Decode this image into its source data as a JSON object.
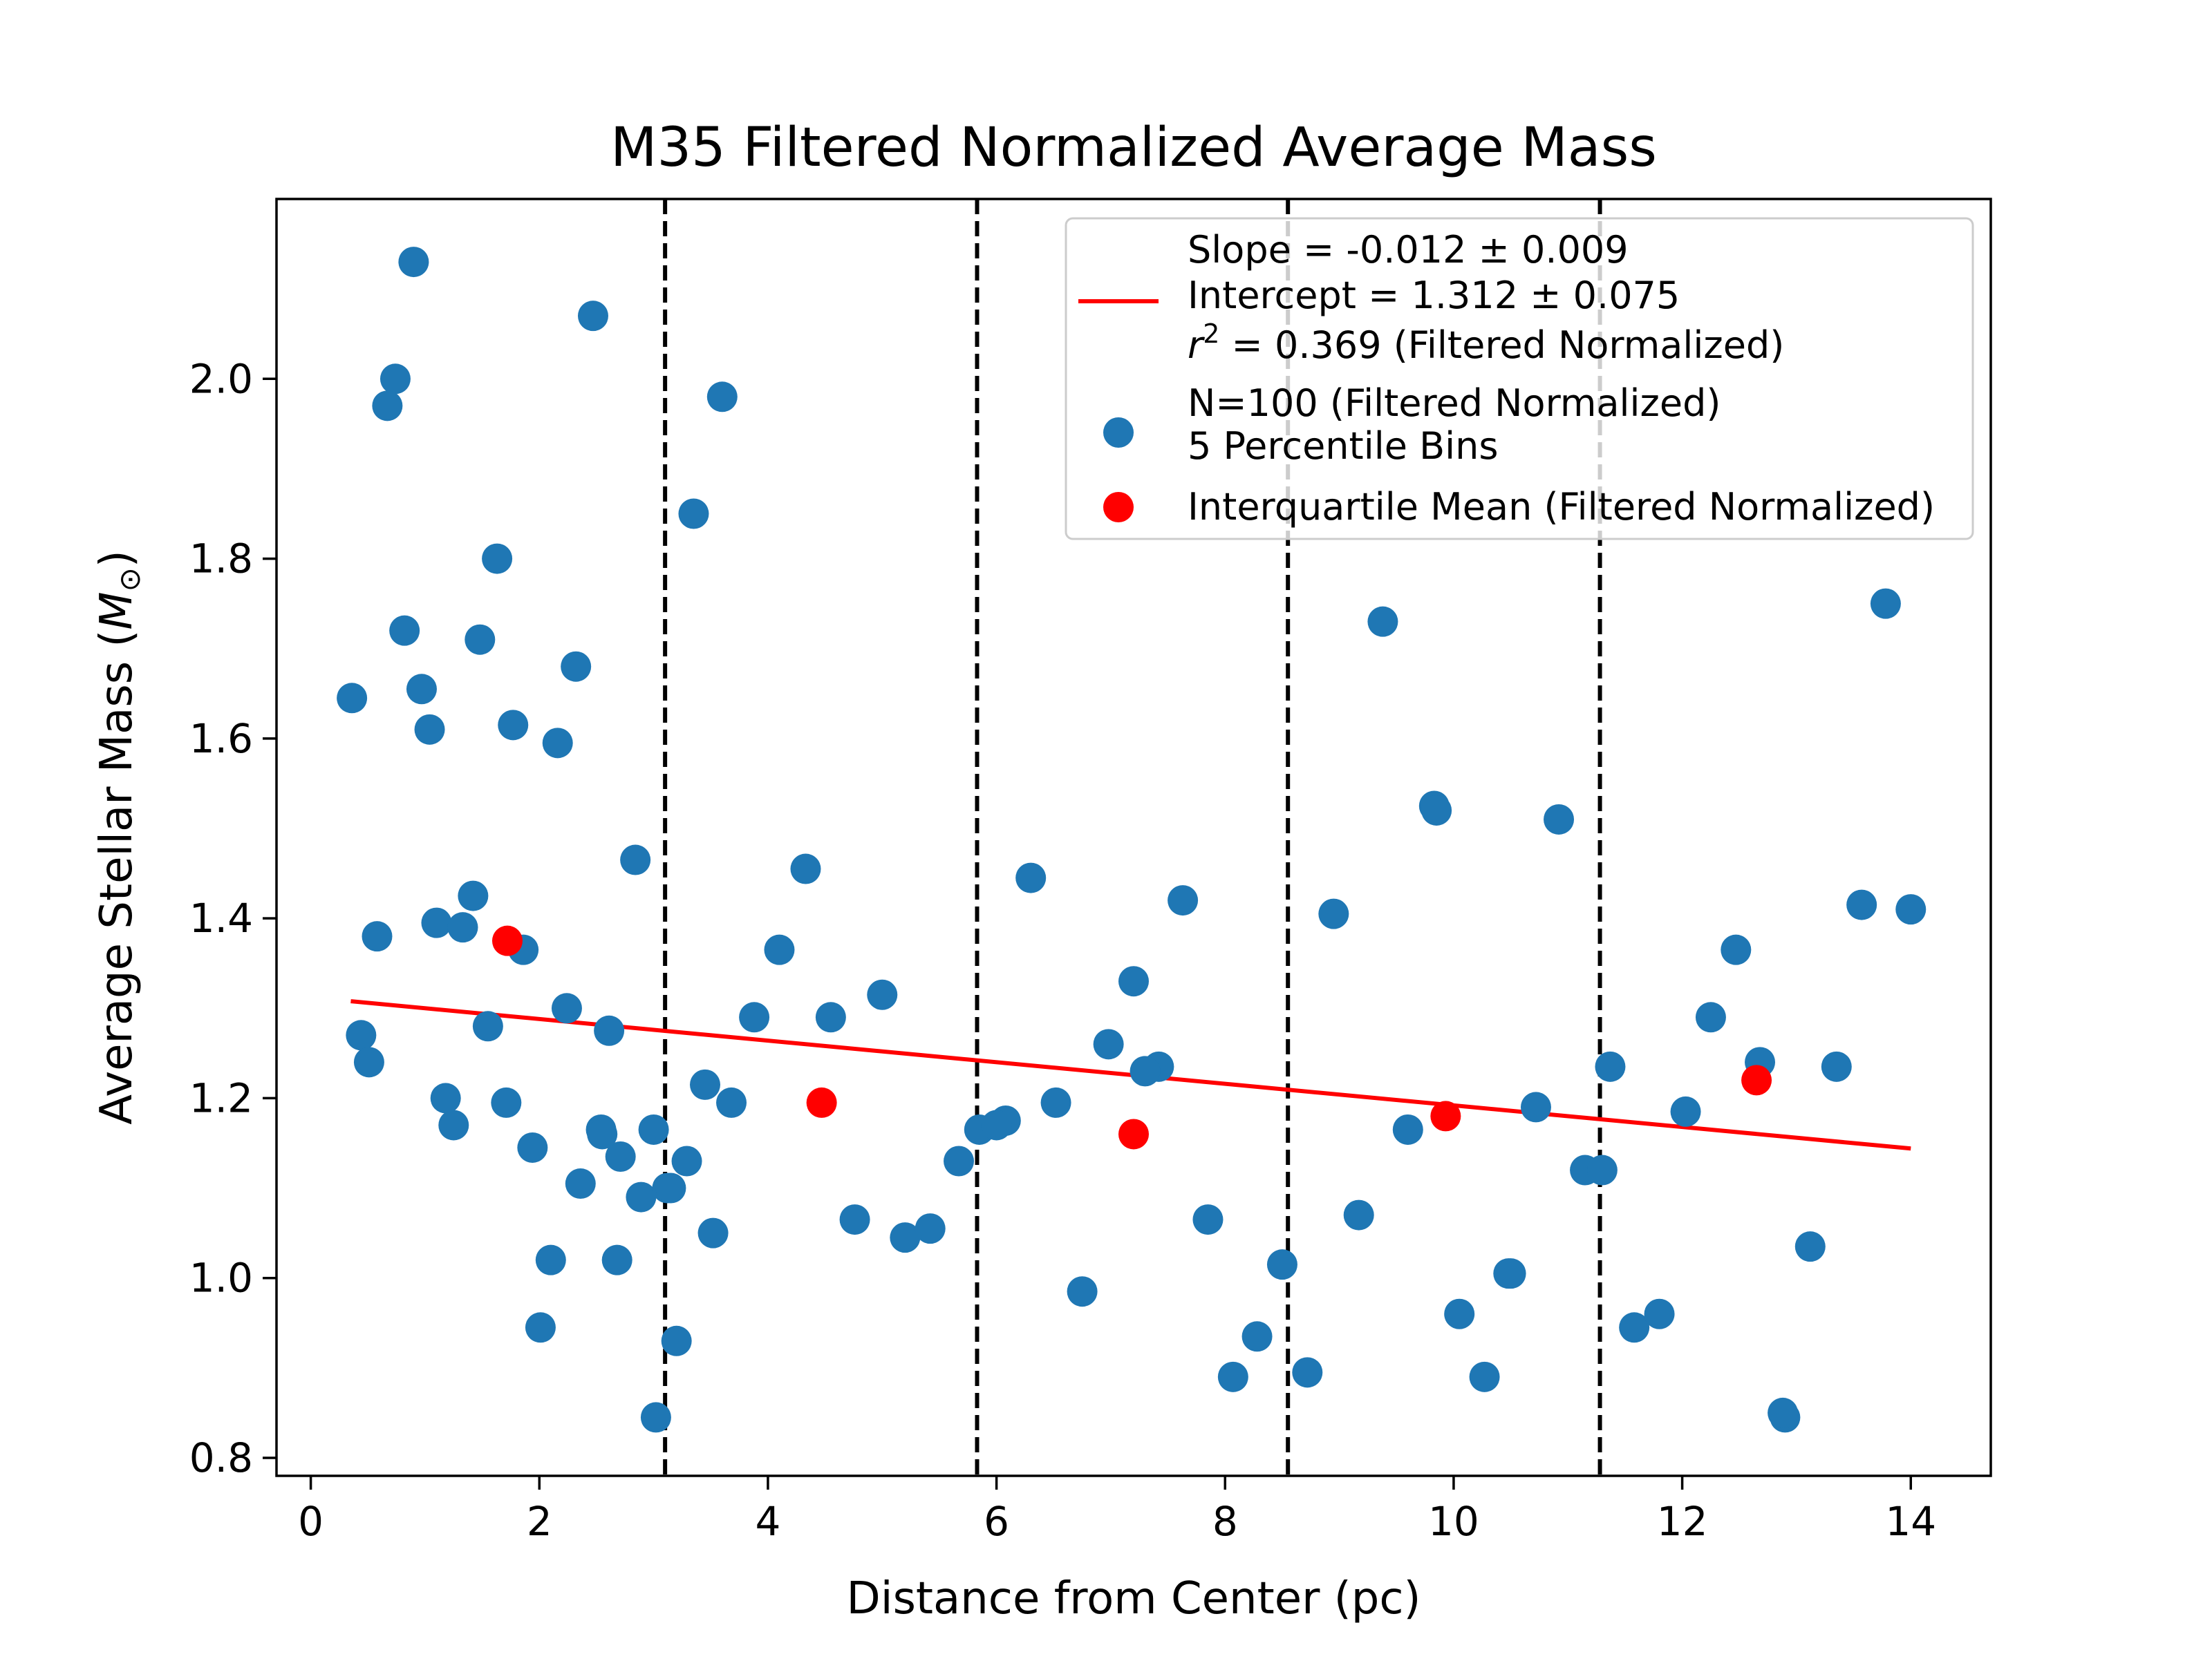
{
  "chart_data": {
    "type": "scatter",
    "title": "M35 Filtered Normalized Average Mass",
    "xlabel": "Distance from Center (pc)",
    "ylabel_main": "Average Stellar Mass (",
    "ylabel_symbol": "M",
    "ylabel_sub": "⊙",
    "ylabel_close": ")",
    "xlim": [
      -0.3,
      14.7
    ],
    "ylim": [
      0.78,
      2.2
    ],
    "xticks": [
      0,
      2,
      4,
      6,
      8,
      10,
      12,
      14
    ],
    "xtick_labels": [
      "0",
      "2",
      "4",
      "6",
      "8",
      "10",
      "12",
      "14"
    ],
    "yticks": [
      0.8,
      1.0,
      1.2,
      1.4,
      1.6,
      1.8,
      2.0
    ],
    "ytick_labels": [
      "0.8",
      "1.0",
      "1.2",
      "1.4",
      "1.6",
      "1.8",
      "2.0"
    ],
    "bin_edges": [
      3.1,
      5.83,
      8.55,
      11.28
    ],
    "colors": {
      "points": "#1f77b4",
      "iqm": "#ff0000",
      "fit": "#ff0000",
      "bins": "#000000"
    },
    "fit": {
      "x_start": 0.35,
      "x_end": 14.0,
      "slope": -0.012,
      "intercept": 1.312
    },
    "legend": {
      "position": "upper right",
      "fit_line1": "Slope = -0.012 ± 0.009",
      "fit_line2": "Intercept = 1.312 ± 0.075",
      "fit_line3_sym": "r",
      "fit_line3_sup": "2",
      "fit_line3_rest": " = 0.369 (Filtered Normalized)",
      "points_line1": "N=100 (Filtered Normalized)",
      "points_line2": "5 Percentile Bins",
      "iqm_line": "Interquartile Mean (Filtered Normalized)"
    },
    "series": [
      {
        "name": "N=100 (Filtered Normalized)",
        "x": [
          0.9,
          2.47,
          0.74,
          3.6,
          0.67,
          3.35,
          1.63,
          0.82,
          1.48,
          2.32,
          0.36,
          0.97,
          1.77,
          1.04,
          2.16,
          2.84,
          1.42,
          1.1,
          1.33,
          0.58,
          1.86,
          1.55,
          2.24,
          2.61,
          0.44,
          0.51,
          1.71,
          1.18,
          1.25,
          1.94,
          2.36,
          2.54,
          2.71,
          2.89,
          3.0,
          3.12,
          3.29,
          2.1,
          2.01,
          2.68,
          3.2,
          3.02,
          4.33,
          4.1,
          3.88,
          4.55,
          5.0,
          3.45,
          3.68,
          3.52,
          4.76,
          5.2,
          5.42,
          5.67,
          5.85,
          6.08,
          6.3,
          6.52,
          6.75,
          6.98,
          7.2,
          7.42,
          7.63,
          7.85,
          8.07,
          8.28,
          8.5,
          8.72,
          8.95,
          9.17,
          9.38,
          9.6,
          9.83,
          10.05,
          10.27,
          10.48,
          10.72,
          10.92,
          11.15,
          11.37,
          11.58,
          11.8,
          12.03,
          12.25,
          12.47,
          12.68,
          12.9,
          13.12,
          13.35,
          13.57,
          13.78,
          14.0,
          12.88,
          10.5,
          11.3,
          9.85,
          7.3,
          6.0,
          3.15,
          2.55
        ],
        "y": [
          2.13,
          2.07,
          2.0,
          1.98,
          1.97,
          1.85,
          1.8,
          1.72,
          1.71,
          1.68,
          1.645,
          1.655,
          1.615,
          1.61,
          1.595,
          1.465,
          1.425,
          1.395,
          1.39,
          1.38,
          1.365,
          1.28,
          1.3,
          1.275,
          1.27,
          1.24,
          1.195,
          1.2,
          1.17,
          1.145,
          1.105,
          1.165,
          1.135,
          1.09,
          1.165,
          1.1,
          1.13,
          1.02,
          0.945,
          1.02,
          0.93,
          0.845,
          1.455,
          1.365,
          1.29,
          1.29,
          1.315,
          1.215,
          1.195,
          1.05,
          1.065,
          1.045,
          1.055,
          1.13,
          1.165,
          1.175,
          1.445,
          1.195,
          0.985,
          1.26,
          1.33,
          1.235,
          1.42,
          1.065,
          0.89,
          0.935,
          1.015,
          0.895,
          1.405,
          1.07,
          1.73,
          1.165,
          1.525,
          0.96,
          0.89,
          1.005,
          1.19,
          1.51,
          1.12,
          1.235,
          0.945,
          0.96,
          1.185,
          1.29,
          1.365,
          1.24,
          0.845,
          1.035,
          1.235,
          1.415,
          1.75,
          1.41,
          0.85,
          1.005,
          1.12,
          1.52,
          1.23,
          1.17,
          1.1,
          1.16
        ]
      },
      {
        "name": "Interquartile Mean (Filtered Normalized)",
        "x": [
          1.72,
          4.47,
          7.2,
          9.93,
          12.65
        ],
        "y": [
          1.375,
          1.195,
          1.16,
          1.18,
          1.22
        ]
      }
    ]
  }
}
